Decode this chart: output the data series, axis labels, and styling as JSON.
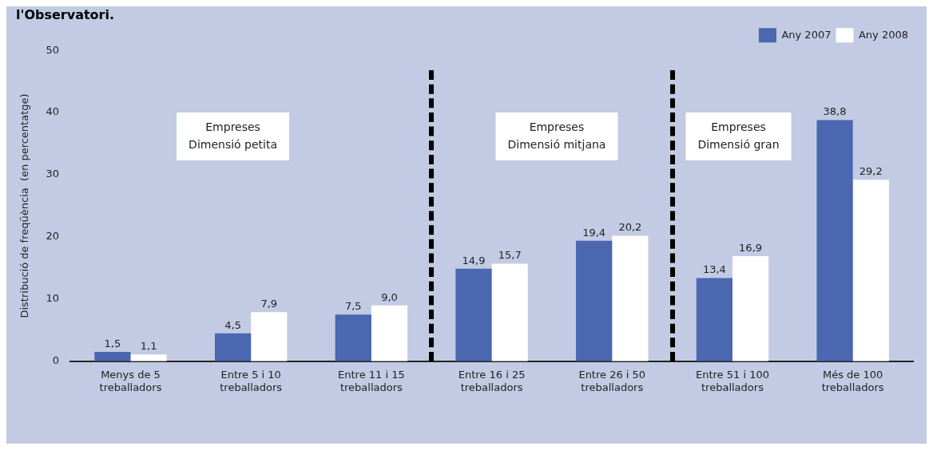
{
  "chart_data": {
    "type": "bar",
    "title": "l'Observatori.",
    "ylabel": "Distribució de freqüència  (en percentatge)",
    "categories": [
      "Menys de 5\ntreballadors",
      "Entre 5 i 10\ntreballadors",
      "Entre 11 i 15\ntreballadors",
      "Entre 16 i 25\ntreballadors",
      "Entre 26 i 50\ntreballadors",
      "Entre 51 i 100\ntreballadors",
      "Més de 100\ntreballadors"
    ],
    "series": [
      {
        "name": "Any 2007",
        "color": "#4a67b0",
        "values": [
          1.5,
          4.5,
          7.5,
          14.9,
          19.4,
          13.4,
          38.8
        ],
        "value_labels": [
          "1,5",
          "4,5",
          "7,5",
          "14,9",
          "19,4",
          "13,4",
          "38,8"
        ]
      },
      {
        "name": "Any 2008",
        "color": "#ffffff",
        "values": [
          1.1,
          7.9,
          9.0,
          15.7,
          20.2,
          16.9,
          29.2
        ],
        "value_labels": [
          "1,1",
          "7,9",
          "9,0",
          "15,7",
          "20,2",
          "16,9",
          "29,2"
        ]
      }
    ],
    "ylim": [
      0,
      50
    ],
    "yticks": [
      0,
      10,
      20,
      30,
      40,
      50
    ],
    "grid": false,
    "legend": "top right",
    "annotations": [
      "Empreses\nDimensió petita",
      "Empreses\nDimensió mitjana",
      "Empreses\nDimensió gran"
    ]
  }
}
